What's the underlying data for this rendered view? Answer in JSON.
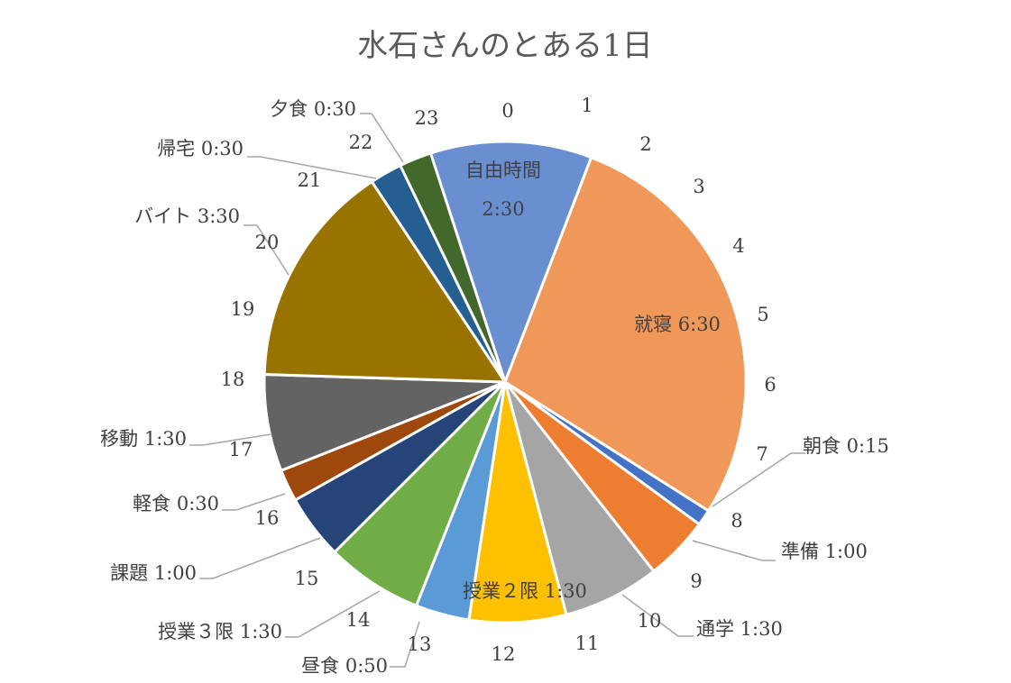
{
  "chart_data": {
    "type": "pie",
    "title": "水石さんのとある1日",
    "start_angle_deg": -18,
    "slices": [
      {
        "label": "自由時間 2:30",
        "label_lines": [
          "自由時間",
          "2:30"
        ],
        "hours": 2.5,
        "color": "#6a8fd1",
        "label_pos": "inside"
      },
      {
        "label": "就寝 6:30",
        "hours": 6.5,
        "color": "#f0985a",
        "label_pos": "inside"
      },
      {
        "label": "朝食 0:15",
        "hours": 0.25,
        "color": "#4472c4",
        "label_pos": "outside"
      },
      {
        "label": "準備 1:00",
        "hours": 1.0,
        "color": "#ed7d31",
        "label_pos": "outside"
      },
      {
        "label": "通学 1:30",
        "hours": 1.5,
        "color": "#a5a5a5",
        "label_pos": "outside"
      },
      {
        "label": "授業２限 1:30",
        "hours": 1.5,
        "color": "#ffc000",
        "label_pos": "inside"
      },
      {
        "label": "昼食 0:50",
        "hours": 0.8333,
        "color": "#5b9bd5",
        "label_pos": "outside"
      },
      {
        "label": "授業３限 1:30",
        "hours": 1.5,
        "color": "#70ad47",
        "label_pos": "outside"
      },
      {
        "label": "課題 1:00",
        "hours": 1.0,
        "color": "#264478",
        "label_pos": "outside"
      },
      {
        "label": "軽食 0:30",
        "hours": 0.5,
        "color": "#9e480e",
        "label_pos": "outside"
      },
      {
        "label": "移動 1:30",
        "hours": 1.5,
        "color": "#636363",
        "label_pos": "outside"
      },
      {
        "label": "バイト 3:30",
        "hours": 3.5,
        "color": "#997300",
        "label_pos": "outside"
      },
      {
        "label": "帰宅 0:30",
        "hours": 0.5,
        "color": "#255e91",
        "label_pos": "outside"
      },
      {
        "label": "夕食 0:30",
        "hours": 0.5,
        "color": "#43682b",
        "label_pos": "outside"
      }
    ],
    "hour_ticks": [
      "0",
      "1",
      "2",
      "3",
      "4",
      "5",
      "6",
      "7",
      "8",
      "9",
      "10",
      "11",
      "12",
      "13",
      "14",
      "15",
      "16",
      "17",
      "18",
      "19",
      "20",
      "21",
      "22",
      "23"
    ],
    "legend": "none"
  }
}
